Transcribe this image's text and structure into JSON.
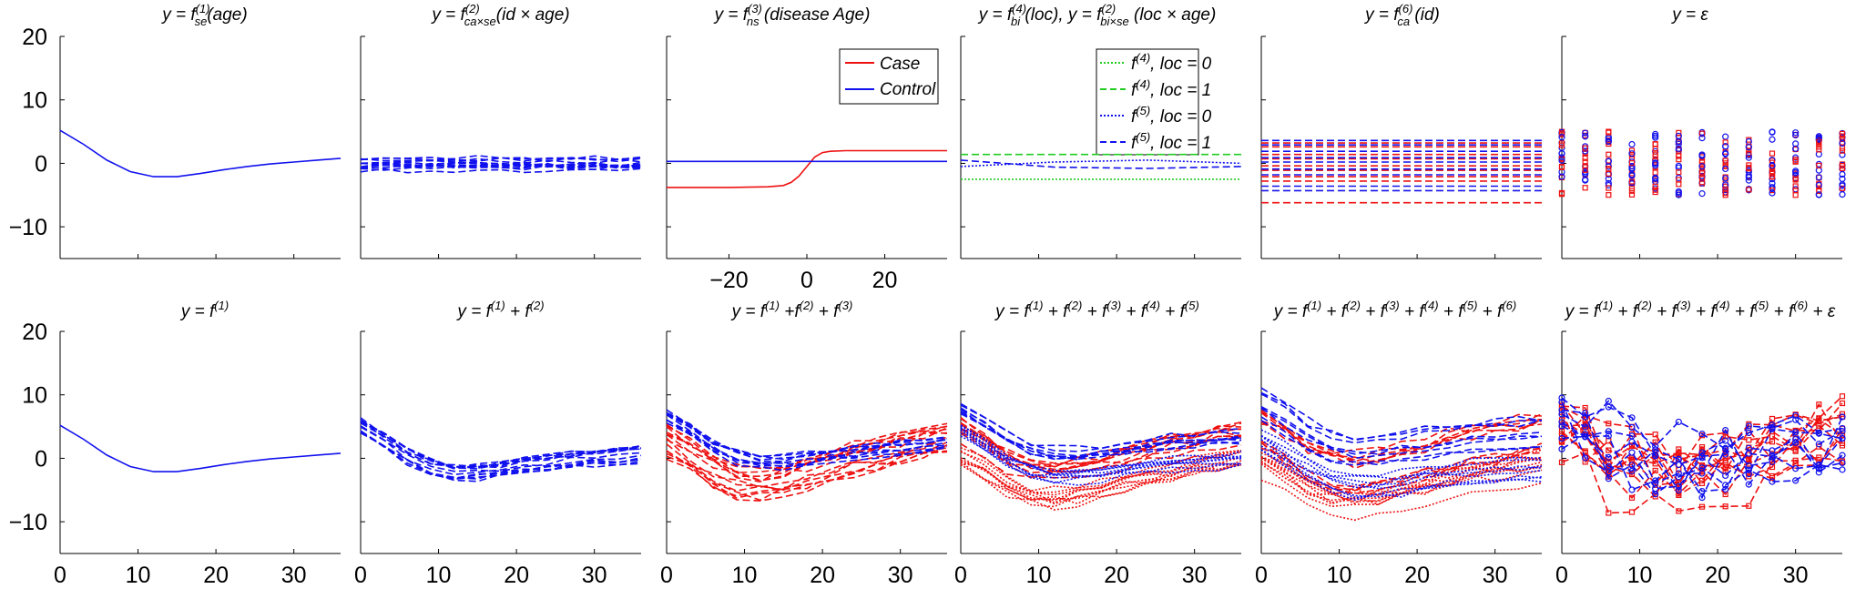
{
  "colors": {
    "case": "#ee1111",
    "control": "#1111ee",
    "loc0": "#22cc22",
    "loc1": "#22cc22",
    "axis": "#000000"
  },
  "shared": {
    "ylim": [
      -15,
      20
    ],
    "yticks": [
      -10,
      0,
      10,
      20
    ],
    "xlim_age": [
      0,
      36
    ],
    "xticks_age": [
      0,
      10,
      20,
      30
    ],
    "xlim_disease": [
      -36,
      36
    ],
    "xticks_disease": [
      -20,
      0,
      20
    ]
  },
  "chart_data": [
    {
      "id": "p1",
      "type": "line",
      "title": "y = f(1)se(age)",
      "series": [
        {
          "color": "control",
          "style": "solid",
          "x": [
            0,
            3,
            6,
            9,
            12,
            15,
            18,
            21,
            24,
            27,
            30,
            33,
            36
          ],
          "y": [
            5.2,
            3,
            0.5,
            -1.3,
            -2.1,
            -2.1,
            -1.6,
            -1.0,
            -0.5,
            -0.1,
            0.2,
            0.5,
            0.8
          ]
        }
      ]
    },
    {
      "id": "p2",
      "type": "line",
      "title": "y = f(2)ca×se(id × age)",
      "bands": [
        {
          "color": "control",
          "style": "dash",
          "count": 14,
          "center": 0,
          "spread": 1.2,
          "amp": 0.4
        }
      ]
    },
    {
      "id": "p3",
      "type": "line",
      "title": "y = f(3)ns (disease Age)",
      "legend": {
        "position": "top-right",
        "entries": [
          {
            "label": "Case",
            "color": "case"
          },
          {
            "label": "Control",
            "color": "control"
          }
        ]
      },
      "series": [
        {
          "name": "Case",
          "color": "case",
          "style": "solid",
          "x": [
            -36,
            -20,
            -10,
            -6,
            -4,
            -2,
            0,
            2,
            4,
            6,
            10,
            20,
            36
          ],
          "y": [
            -3.8,
            -3.8,
            -3.7,
            -3.5,
            -3.0,
            -2.0,
            -0.5,
            1.0,
            1.7,
            1.9,
            2.0,
            2.0,
            2.0
          ]
        },
        {
          "name": "Control",
          "color": "control",
          "style": "solid",
          "x": [
            -36,
            36
          ],
          "y": [
            0.3,
            0.3
          ]
        }
      ]
    },
    {
      "id": "p4",
      "type": "line",
      "title": "y = f(4)bi (loc), y = f(2)bi×se (loc × age)",
      "legend": {
        "position": "top-right",
        "entries": [
          {
            "label": "f(4), loc = 0",
            "color": "loc0",
            "style": "dot"
          },
          {
            "label": "f(4), loc = 1",
            "color": "loc1",
            "style": "dash"
          },
          {
            "label": "f(5), loc = 0",
            "color": "control",
            "style": "dot"
          },
          {
            "label": "f(5), loc = 1",
            "color": "control",
            "style": "dash"
          }
        ]
      },
      "series": [
        {
          "name": "f(4), loc = 0",
          "color": "loc0",
          "style": "dot",
          "x": [
            0,
            36
          ],
          "y": [
            -2.5,
            -2.5
          ]
        },
        {
          "name": "f(4), loc = 1",
          "color": "loc1",
          "style": "dash",
          "x": [
            0,
            36
          ],
          "y": [
            1.4,
            1.4
          ]
        },
        {
          "name": "f(5), loc = 0",
          "color": "control",
          "style": "dot",
          "x": [
            0,
            12,
            24,
            36
          ],
          "y": [
            -0.5,
            0.2,
            0.5,
            0.0
          ]
        },
        {
          "name": "f(5), loc = 1",
          "color": "control",
          "style": "dash",
          "x": [
            0,
            12,
            24,
            36
          ],
          "y": [
            0.5,
            -0.6,
            -0.8,
            -0.5
          ]
        }
      ]
    },
    {
      "id": "p5",
      "type": "line",
      "title": "y = f(6)ca (id)",
      "hlines": [
        {
          "color": "case",
          "style": "dash",
          "values": [
            -6.2,
            -2.8,
            -2.1,
            -1.1,
            -0.4,
            0.7,
            1.4,
            2.6,
            3.2
          ]
        },
        {
          "color": "control",
          "style": "dash",
          "values": [
            -4.3,
            -3.6,
            -1.8,
            -0.9,
            0.2,
            0.9,
            1.9,
            2.9,
            3.6
          ]
        }
      ]
    },
    {
      "id": "p6",
      "type": "scatter",
      "title": "y = ε",
      "x": [
        0,
        3,
        6,
        9,
        12,
        15,
        18,
        21,
        24,
        27,
        30,
        33,
        36
      ],
      "spread": 5,
      "points_per_group": 12
    },
    {
      "id": "p7",
      "type": "line",
      "title": "y = f(1)",
      "series": [
        {
          "color": "control",
          "style": "solid",
          "x": [
            0,
            3,
            6,
            9,
            12,
            15,
            18,
            21,
            24,
            27,
            30,
            33,
            36
          ],
          "y": [
            5.2,
            3,
            0.5,
            -1.3,
            -2.1,
            -2.1,
            -1.6,
            -1.0,
            -0.5,
            -0.1,
            0.2,
            0.5,
            0.8
          ]
        }
      ]
    },
    {
      "id": "p8",
      "type": "line",
      "title": "y = f(1) + f(2)",
      "bands": [
        {
          "color": "control",
          "style": "dash",
          "count": 14,
          "center": 0,
          "spread": 1.3,
          "amp": 0.4,
          "base": "f1"
        }
      ]
    },
    {
      "id": "p9",
      "type": "line",
      "title": "y = f(1) +f(2) + f(3)",
      "bands": [
        {
          "color": "case",
          "style": "dash",
          "count": 14,
          "center": -2.5,
          "spread": 2.2,
          "amp": 0.8,
          "base": "f1",
          "rise": 5
        },
        {
          "color": "control",
          "style": "dash",
          "count": 10,
          "center": 1.5,
          "spread": 1.0,
          "amp": 0.5,
          "base": "f1"
        }
      ]
    },
    {
      "id": "p10",
      "type": "line",
      "title": "y = f(1) + f(2) + f(3) + f(4) + f(5)",
      "bands": [
        {
          "color": "case",
          "style": "dot",
          "count": 10,
          "center": -4.5,
          "spread": 1.5,
          "amp": 0.8,
          "base": "f1",
          "rise": 4
        },
        {
          "color": "case",
          "style": "dash",
          "count": 10,
          "center": -0.8,
          "spread": 1.5,
          "amp": 0.8,
          "base": "f1",
          "rise": 4
        },
        {
          "color": "control",
          "style": "dot",
          "count": 8,
          "center": -1.0,
          "spread": 1.0,
          "amp": 0.5,
          "base": "f1"
        },
        {
          "color": "control",
          "style": "dash",
          "count": 8,
          "center": 2.8,
          "spread": 1.0,
          "amp": 0.5,
          "base": "f1"
        }
      ]
    },
    {
      "id": "p11",
      "type": "line",
      "title": "y = f(1) + f(2) + f(3) + f(4) + f(5) + f(6)",
      "bands": [
        {
          "color": "case",
          "style": "dot",
          "count": 10,
          "center": -5.0,
          "spread": 3.0,
          "amp": 1.0,
          "base": "f1",
          "rise": 4
        },
        {
          "color": "case",
          "style": "dash",
          "count": 10,
          "center": -0.5,
          "spread": 3.0,
          "amp": 1.0,
          "base": "f1",
          "rise": 4
        },
        {
          "color": "control",
          "style": "dot",
          "count": 8,
          "center": -1.5,
          "spread": 2.5,
          "amp": 0.6,
          "base": "f1"
        },
        {
          "color": "control",
          "style": "dash",
          "count": 8,
          "center": 3.5,
          "spread": 2.5,
          "amp": 0.6,
          "base": "f1"
        }
      ]
    },
    {
      "id": "p12",
      "type": "line",
      "title": "y = f(1) + f(2) + f(3) + f(4) + f(5) + f(6) + ε",
      "bands": [
        {
          "color": "case",
          "style": "dash",
          "count": 12,
          "center": -1.5,
          "spread": 3.5,
          "amp": 4.5,
          "base": "f1",
          "rise": 4,
          "markers": "square"
        },
        {
          "color": "control",
          "style": "dash",
          "count": 8,
          "center": 2.0,
          "spread": 3.0,
          "amp": 4.0,
          "base": "f1",
          "markers": "circle"
        }
      ]
    }
  ]
}
